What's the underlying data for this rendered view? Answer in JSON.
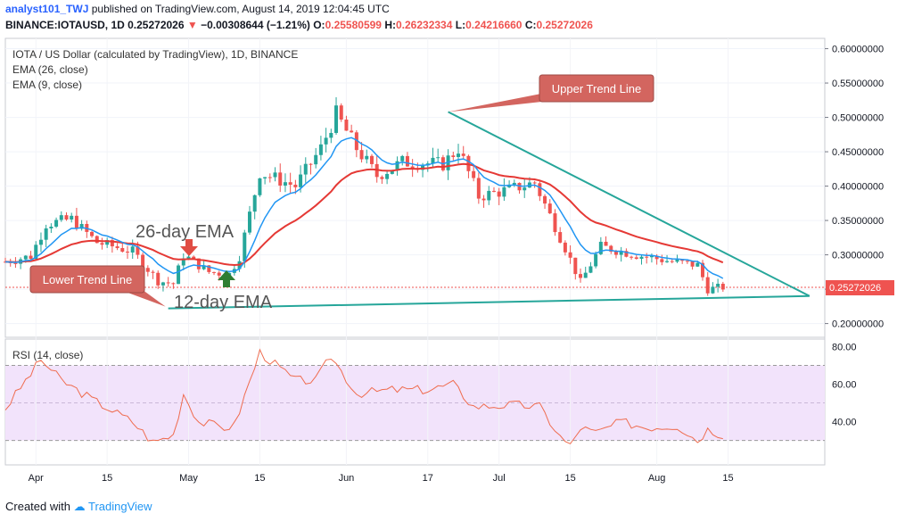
{
  "header": {
    "user": "analyst101_TWJ",
    "published": "published on TradingView.com, August 14, 2019 12:04:45 UTC",
    "symbol": "BINANCE:IOTAUSD, 1D",
    "last": "0.25272026",
    "change": "−0.00308644 (−1.21%)",
    "open_label": "O:",
    "open": "0.25580599",
    "high_label": "H:",
    "high": "0.26232334",
    "low_label": "L:",
    "low": "0.24216660",
    "close_label": "C:",
    "close": "0.25272026"
  },
  "legend": {
    "title": "IOTA / US Dollar (calculated by TradingView), 1D, BINANCE",
    "ema26": "EMA (26, close)",
    "ema9": "EMA (9, close)",
    "rsi": "RSI (14, close)"
  },
  "annotations": {
    "upper": "Upper Trend Line",
    "lower": "Lower Trend Line",
    "ema26": "26-day EMA",
    "ema12": "12-day EMA"
  },
  "footer": {
    "created_with": "Created with",
    "brand": "TradingView"
  },
  "colors": {
    "up": "#26a69a",
    "down": "#ef5350",
    "ema_fast": "#2196f3",
    "ema_slow": "#e53935",
    "trend": "#26a69a",
    "callout": "#d3655f",
    "rsi": "#ef6c4f",
    "rsi_band": "#f2e3fb"
  },
  "chart_data": [
    {
      "type": "candlestick",
      "title": "IOTA / US Dollar (calculated by TradingView), 1D, BINANCE",
      "y_ticks": [
        "0.20000000",
        "0.25000000",
        "0.30000000",
        "0.35000000",
        "0.40000000",
        "0.45000000",
        "0.50000000",
        "0.55000000",
        "0.60000000"
      ],
      "ylim": [
        0.18,
        0.615
      ],
      "x_ticks": [
        {
          "label": "Apr",
          "date": "2019-04-01"
        },
        {
          "label": "15",
          "date": "2019-04-15"
        },
        {
          "label": "May",
          "date": "2019-05-01"
        },
        {
          "label": "15",
          "date": "2019-05-15"
        },
        {
          "label": "Jun",
          "date": "2019-06-01"
        },
        {
          "label": "17",
          "date": "2019-06-17"
        },
        {
          "label": "Jul",
          "date": "2019-07-01"
        },
        {
          "label": "15",
          "date": "2019-07-15"
        },
        {
          "label": "Aug",
          "date": "2019-08-01"
        },
        {
          "label": "15",
          "date": "2019-08-15"
        }
      ],
      "xlim": [
        "2019-03-26",
        "2019-09-03"
      ],
      "price_line": 0.25272026,
      "price_label": "0.25272026",
      "anchors": [
        {
          "date": "2019-03-26",
          "close": 0.29
        },
        {
          "date": "2019-03-31",
          "close": 0.298
        },
        {
          "date": "2019-04-03",
          "close": 0.345
        },
        {
          "date": "2019-04-08",
          "close": 0.352
        },
        {
          "date": "2019-04-13",
          "close": 0.318
        },
        {
          "date": "2019-04-20",
          "close": 0.305
        },
        {
          "date": "2019-04-25",
          "close": 0.262
        },
        {
          "date": "2019-04-28",
          "close": 0.258
        },
        {
          "date": "2019-04-30",
          "close": 0.3
        },
        {
          "date": "2019-05-05",
          "close": 0.275
        },
        {
          "date": "2019-05-09",
          "close": 0.272
        },
        {
          "date": "2019-05-11",
          "close": 0.298
        },
        {
          "date": "2019-05-15",
          "close": 0.42
        },
        {
          "date": "2019-05-22",
          "close": 0.4
        },
        {
          "date": "2019-05-27",
          "close": 0.455
        },
        {
          "date": "2019-05-30",
          "close": 0.505
        },
        {
          "date": "2019-06-03",
          "close": 0.455
        },
        {
          "date": "2019-06-07",
          "close": 0.415
        },
        {
          "date": "2019-06-12",
          "close": 0.435
        },
        {
          "date": "2019-06-20",
          "close": 0.432
        },
        {
          "date": "2019-06-23",
          "close": 0.455
        },
        {
          "date": "2019-06-27",
          "close": 0.385
        },
        {
          "date": "2019-07-03",
          "close": 0.395
        },
        {
          "date": "2019-07-08",
          "close": 0.405
        },
        {
          "date": "2019-07-14",
          "close": 0.31
        },
        {
          "date": "2019-07-17",
          "close": 0.26
        },
        {
          "date": "2019-07-21",
          "close": 0.312
        },
        {
          "date": "2019-07-28",
          "close": 0.3
        },
        {
          "date": "2019-08-04",
          "close": 0.29
        },
        {
          "date": "2019-08-09",
          "close": 0.285
        },
        {
          "date": "2019-08-11",
          "close": 0.25
        },
        {
          "date": "2019-08-14",
          "close": 0.253
        }
      ],
      "upper_trend_line": [
        {
          "date": "2019-06-21",
          "value": 0.508
        },
        {
          "date": "2019-08-31",
          "value": 0.24
        }
      ],
      "lower_trend_line": [
        {
          "date": "2019-04-27",
          "value": 0.222
        },
        {
          "date": "2019-08-31",
          "value": 0.24
        }
      ]
    },
    {
      "type": "line",
      "title": "RSI (14, close)",
      "y_ticks": [
        "40.00",
        "60.00",
        "80.00"
      ],
      "ylim": [
        17,
        84
      ],
      "band": [
        30,
        70
      ],
      "series": [
        {
          "name": "RSI (14, close)",
          "anchors": [
            {
              "date": "2019-03-26",
              "value": 47
            },
            {
              "date": "2019-04-02",
              "value": 73
            },
            {
              "date": "2019-04-06",
              "value": 62
            },
            {
              "date": "2019-04-12",
              "value": 52
            },
            {
              "date": "2019-04-20",
              "value": 40
            },
            {
              "date": "2019-04-24",
              "value": 29
            },
            {
              "date": "2019-04-28",
              "value": 33
            },
            {
              "date": "2019-04-30",
              "value": 55
            },
            {
              "date": "2019-05-03",
              "value": 40
            },
            {
              "date": "2019-05-08",
              "value": 37
            },
            {
              "date": "2019-05-10",
              "value": 38
            },
            {
              "date": "2019-05-15",
              "value": 77
            },
            {
              "date": "2019-05-22",
              "value": 62
            },
            {
              "date": "2019-05-26",
              "value": 62
            },
            {
              "date": "2019-05-29",
              "value": 75
            },
            {
              "date": "2019-06-03",
              "value": 55
            },
            {
              "date": "2019-06-10",
              "value": 57
            },
            {
              "date": "2019-06-17",
              "value": 57
            },
            {
              "date": "2019-06-22",
              "value": 60
            },
            {
              "date": "2019-06-26",
              "value": 48
            },
            {
              "date": "2019-07-04",
              "value": 49
            },
            {
              "date": "2019-07-09",
              "value": 48
            },
            {
              "date": "2019-07-13",
              "value": 32
            },
            {
              "date": "2019-07-15",
              "value": 27
            },
            {
              "date": "2019-07-17",
              "value": 37
            },
            {
              "date": "2019-07-20",
              "value": 34
            },
            {
              "date": "2019-07-25",
              "value": 40
            },
            {
              "date": "2019-07-30",
              "value": 37
            },
            {
              "date": "2019-08-05",
              "value": 38
            },
            {
              "date": "2019-08-09",
              "value": 30
            },
            {
              "date": "2019-08-11",
              "value": 36
            },
            {
              "date": "2019-08-14",
              "value": 33
            }
          ]
        }
      ]
    }
  ]
}
